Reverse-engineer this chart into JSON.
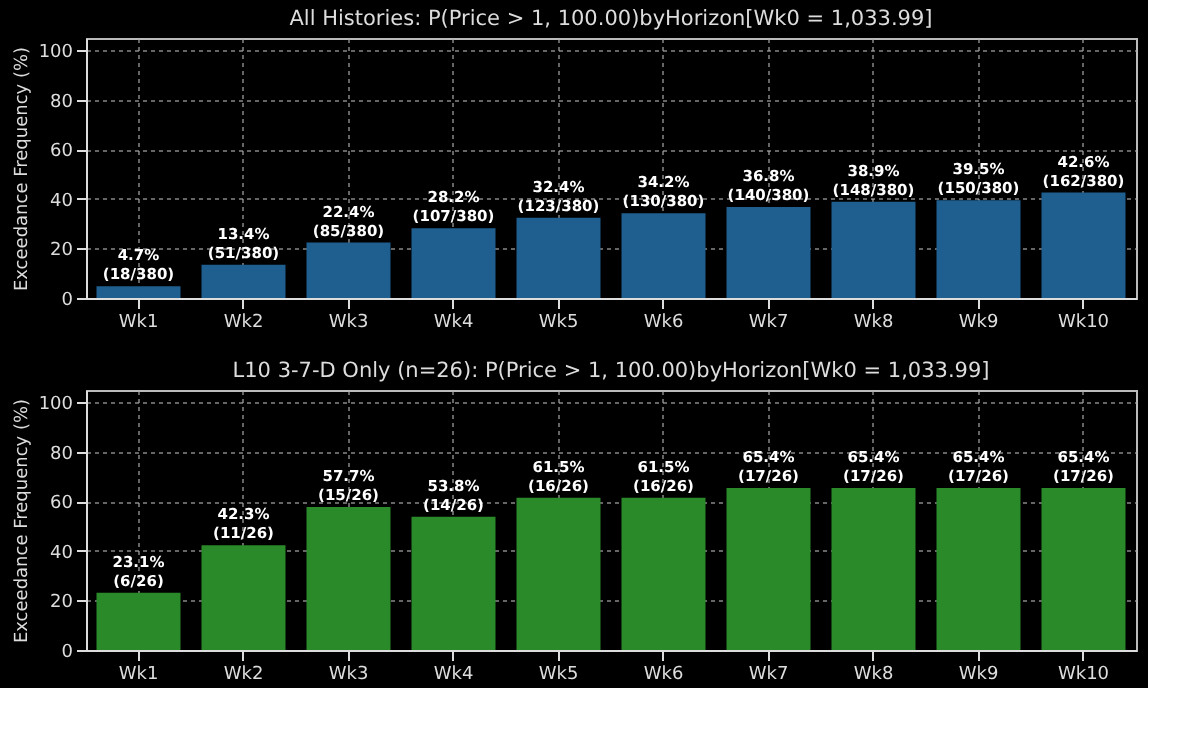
{
  "chart_data": [
    {
      "type": "bar",
      "title": "All Histories: P(Price > 1, 100.00)byHorizon[Wk0 = 1,033.99]",
      "ylabel": "Exceedance Frequency (%)",
      "categories": [
        "Wk1",
        "Wk2",
        "Wk3",
        "Wk4",
        "Wk5",
        "Wk6",
        "Wk7",
        "Wk8",
        "Wk9",
        "Wk10"
      ],
      "values": [
        4.7,
        13.4,
        22.4,
        28.2,
        32.4,
        34.2,
        36.8,
        38.9,
        39.5,
        42.6
      ],
      "value_labels": [
        "4.7%\n(18/380)",
        "13.4%\n(51/380)",
        "22.4%\n(85/380)",
        "28.2%\n(107/380)",
        "32.4%\n(123/380)",
        "34.2%\n(130/380)",
        "36.8%\n(140/380)",
        "38.9%\n(148/380)",
        "39.5%\n(150/380)",
        "42.6%\n(162/380)"
      ],
      "color": "#1f5f8f",
      "ylim": [
        0,
        105
      ],
      "yticks": [
        0,
        20,
        40,
        60,
        80,
        100
      ],
      "grid": true
    },
    {
      "type": "bar",
      "title": "L10 3-7-D Only (n=26): P(Price > 1, 100.00)byHorizon[Wk0 = 1,033.99]",
      "ylabel": "Exceedance Frequency (%)",
      "categories": [
        "Wk1",
        "Wk2",
        "Wk3",
        "Wk4",
        "Wk5",
        "Wk6",
        "Wk7",
        "Wk8",
        "Wk9",
        "Wk10"
      ],
      "values": [
        23.1,
        42.3,
        57.7,
        53.8,
        61.5,
        61.5,
        65.4,
        65.4,
        65.4,
        65.4
      ],
      "value_labels": [
        "23.1%\n(6/26)",
        "42.3%\n(11/26)",
        "57.7%\n(15/26)",
        "53.8%\n(14/26)",
        "61.5%\n(16/26)",
        "61.5%\n(16/26)",
        "65.4%\n(17/26)",
        "65.4%\n(17/26)",
        "65.4%\n(17/26)",
        "65.4%\n(17/26)"
      ],
      "color": "#2a8a2a",
      "ylim": [
        0,
        105
      ],
      "yticks": [
        0,
        20,
        40,
        60,
        80,
        100
      ],
      "grid": true
    }
  ]
}
